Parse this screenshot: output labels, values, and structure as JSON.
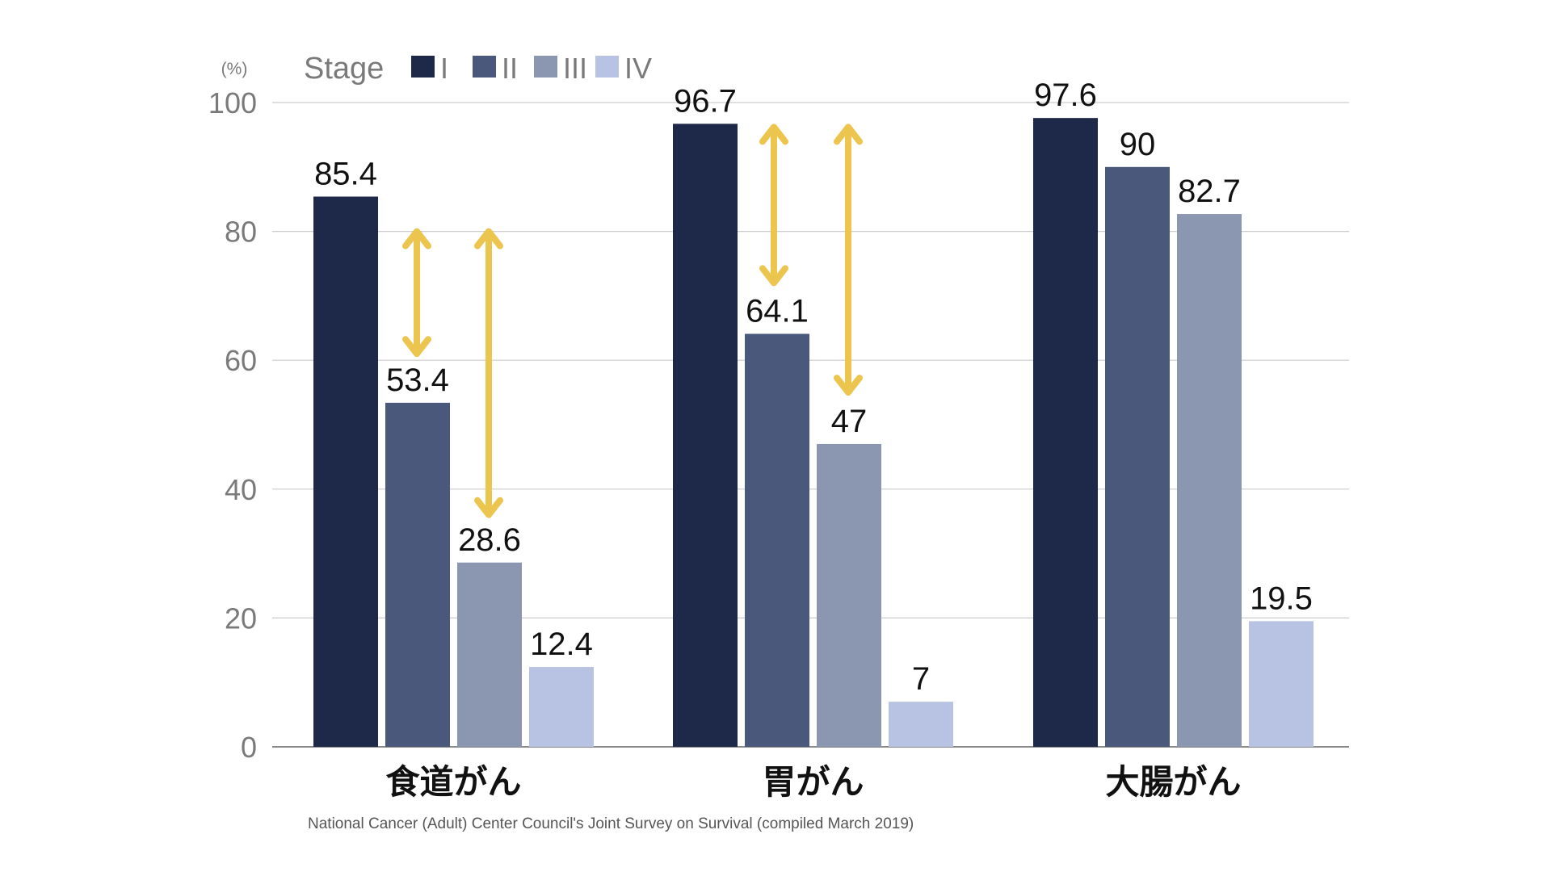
{
  "footnote": "National Cancer (Adult) Center Council's Joint Survey on Survival (compiled March 2019)",
  "chart_data": {
    "type": "bar",
    "unit_label": "(%)",
    "legend_title": "Stage",
    "legend_position": "top",
    "categories": [
      "食道がん",
      "胃がん",
      "大腸がん"
    ],
    "series": [
      {
        "name": "I",
        "color": "#1e2848",
        "values": [
          85.4,
          96.7,
          97.6
        ]
      },
      {
        "name": "II",
        "color": "#4a587c",
        "values": [
          53.4,
          64.1,
          90
        ]
      },
      {
        "name": "III",
        "color": "#8b96b0",
        "values": [
          28.6,
          47,
          82.7
        ]
      },
      {
        "name": "IV",
        "color": "#b8c3e3",
        "values": [
          12.4,
          7,
          19.5
        ]
      }
    ],
    "value_labels": [
      [
        "85.4",
        "53.4",
        "28.6",
        "12.4"
      ],
      [
        "96.7",
        "64.1",
        "47",
        "7"
      ],
      [
        "97.6",
        "90",
        "82.7",
        "19.5"
      ]
    ],
    "ylim": [
      0,
      100
    ],
    "yticks": [
      "0",
      "20",
      "40",
      "60",
      "80",
      "100"
    ],
    "grid": true,
    "annotations": [
      {
        "type": "double-arrow",
        "category": "食道がん",
        "from": 80.5,
        "to": 60.5,
        "color": "#ecc54e"
      },
      {
        "type": "double-arrow",
        "category": "食道がん",
        "from": 80.5,
        "to": 35.5,
        "color": "#ecc54e"
      },
      {
        "type": "double-arrow",
        "category": "胃がん",
        "from": 96.7,
        "to": 71.5,
        "color": "#ecc54e"
      },
      {
        "type": "double-arrow",
        "category": "胃がん",
        "from": 96.7,
        "to": 54.5,
        "color": "#ecc54e"
      }
    ]
  }
}
